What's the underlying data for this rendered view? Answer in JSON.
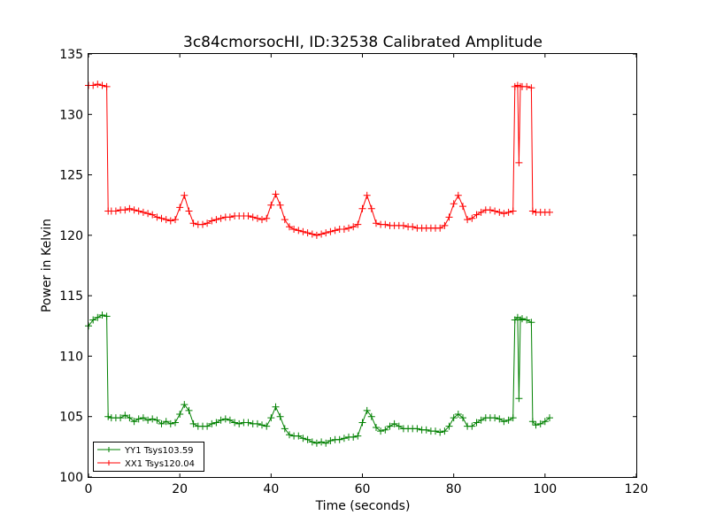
{
  "chart_data": {
    "type": "line",
    "title": "3c84cmorsocHI, ID:32538 Calibrated Amplitude",
    "xlabel": "Time (seconds)",
    "ylabel": "Power in Kelvin",
    "xlim": [
      0,
      120
    ],
    "ylim": [
      100,
      135
    ],
    "xticks": [
      0,
      20,
      40,
      60,
      80,
      100,
      120
    ],
    "yticks": [
      100,
      105,
      110,
      115,
      120,
      125,
      130,
      135
    ],
    "grid": false,
    "legend_position": "lower-left",
    "marker": "+",
    "series": [
      {
        "name": "YY1 Tsys103.59",
        "color": "#008000",
        "points": [
          [
            0,
            112.5
          ],
          [
            1,
            113.0
          ],
          [
            2,
            113.2
          ],
          [
            3,
            113.4
          ],
          [
            4,
            113.3
          ],
          [
            4.3,
            105.0
          ],
          [
            5,
            104.9
          ],
          [
            6,
            104.9
          ],
          [
            7,
            104.9
          ],
          [
            8,
            105.1
          ],
          [
            9,
            104.9
          ],
          [
            10,
            104.6
          ],
          [
            11,
            104.8
          ],
          [
            12,
            104.9
          ],
          [
            13,
            104.7
          ],
          [
            14,
            104.8
          ],
          [
            15,
            104.7
          ],
          [
            16,
            104.4
          ],
          [
            17,
            104.6
          ],
          [
            18,
            104.4
          ],
          [
            19,
            104.5
          ],
          [
            20,
            105.2
          ],
          [
            21,
            106.0
          ],
          [
            22,
            105.5
          ],
          [
            23,
            104.4
          ],
          [
            24,
            104.2
          ],
          [
            25,
            104.2
          ],
          [
            26,
            104.2
          ],
          [
            27,
            104.4
          ],
          [
            28,
            104.5
          ],
          [
            29,
            104.7
          ],
          [
            30,
            104.8
          ],
          [
            31,
            104.7
          ],
          [
            32,
            104.5
          ],
          [
            33,
            104.4
          ],
          [
            34,
            104.5
          ],
          [
            35,
            104.5
          ],
          [
            36,
            104.4
          ],
          [
            37,
            104.4
          ],
          [
            38,
            104.3
          ],
          [
            39,
            104.2
          ],
          [
            40,
            104.9
          ],
          [
            41,
            105.8
          ],
          [
            42,
            105.0
          ],
          [
            43,
            104.0
          ],
          [
            44,
            103.5
          ],
          [
            45,
            103.4
          ],
          [
            46,
            103.4
          ],
          [
            47,
            103.2
          ],
          [
            48,
            103.1
          ],
          [
            49,
            102.9
          ],
          [
            50,
            102.8
          ],
          [
            51,
            102.9
          ],
          [
            52,
            102.8
          ],
          [
            53,
            103.0
          ],
          [
            54,
            103.1
          ],
          [
            55,
            103.1
          ],
          [
            56,
            103.2
          ],
          [
            57,
            103.3
          ],
          [
            58,
            103.3
          ],
          [
            59,
            103.4
          ],
          [
            60,
            104.5
          ],
          [
            61,
            105.5
          ],
          [
            62,
            105.0
          ],
          [
            63,
            104.1
          ],
          [
            64,
            103.8
          ],
          [
            65,
            103.9
          ],
          [
            66,
            104.2
          ],
          [
            67,
            104.4
          ],
          [
            68,
            104.2
          ],
          [
            69,
            104.0
          ],
          [
            70,
            104.0
          ],
          [
            71,
            104.0
          ],
          [
            72,
            104.0
          ],
          [
            73,
            103.9
          ],
          [
            74,
            103.9
          ],
          [
            75,
            103.8
          ],
          [
            76,
            103.8
          ],
          [
            77,
            103.7
          ],
          [
            78,
            103.8
          ],
          [
            79,
            104.2
          ],
          [
            80,
            104.9
          ],
          [
            81,
            105.2
          ],
          [
            82,
            104.9
          ],
          [
            83,
            104.2
          ],
          [
            84,
            104.2
          ],
          [
            85,
            104.5
          ],
          [
            86,
            104.7
          ],
          [
            87,
            104.9
          ],
          [
            88,
            104.9
          ],
          [
            89,
            104.9
          ],
          [
            90,
            104.8
          ],
          [
            91,
            104.6
          ],
          [
            92,
            104.7
          ],
          [
            93,
            104.9
          ],
          [
            93.4,
            113.0
          ],
          [
            94,
            113.2
          ],
          [
            94.3,
            106.5
          ],
          [
            94.6,
            113.0
          ],
          [
            95,
            113.1
          ],
          [
            96,
            113.0
          ],
          [
            97,
            112.8
          ],
          [
            97.3,
            104.6
          ],
          [
            98,
            104.3
          ],
          [
            99,
            104.4
          ],
          [
            100,
            104.6
          ],
          [
            101,
            104.9
          ]
        ]
      },
      {
        "name": "XX1 Tsys120.04",
        "color": "#ff0000",
        "points": [
          [
            0,
            132.4
          ],
          [
            1,
            132.4
          ],
          [
            2,
            132.5
          ],
          [
            3,
            132.4
          ],
          [
            4,
            132.3
          ],
          [
            4.3,
            122.0
          ],
          [
            5,
            122.0
          ],
          [
            6,
            122.0
          ],
          [
            7,
            122.1
          ],
          [
            8,
            122.1
          ],
          [
            9,
            122.2
          ],
          [
            10,
            122.1
          ],
          [
            11,
            122.0
          ],
          [
            12,
            121.9
          ],
          [
            13,
            121.8
          ],
          [
            14,
            121.7
          ],
          [
            15,
            121.5
          ],
          [
            16,
            121.4
          ],
          [
            17,
            121.3
          ],
          [
            18,
            121.2
          ],
          [
            19,
            121.3
          ],
          [
            20,
            122.3
          ],
          [
            21,
            123.3
          ],
          [
            22,
            122.0
          ],
          [
            23,
            121.0
          ],
          [
            24,
            120.9
          ],
          [
            25,
            120.9
          ],
          [
            26,
            121.0
          ],
          [
            27,
            121.2
          ],
          [
            28,
            121.3
          ],
          [
            29,
            121.4
          ],
          [
            30,
            121.5
          ],
          [
            31,
            121.5
          ],
          [
            32,
            121.6
          ],
          [
            33,
            121.6
          ],
          [
            34,
            121.6
          ],
          [
            35,
            121.6
          ],
          [
            36,
            121.5
          ],
          [
            37,
            121.4
          ],
          [
            38,
            121.3
          ],
          [
            39,
            121.4
          ],
          [
            40,
            122.5
          ],
          [
            41,
            123.4
          ],
          [
            42,
            122.5
          ],
          [
            43,
            121.3
          ],
          [
            44,
            120.7
          ],
          [
            45,
            120.5
          ],
          [
            46,
            120.4
          ],
          [
            47,
            120.3
          ],
          [
            48,
            120.2
          ],
          [
            49,
            120.1
          ],
          [
            50,
            120.0
          ],
          [
            51,
            120.1
          ],
          [
            52,
            120.2
          ],
          [
            53,
            120.3
          ],
          [
            54,
            120.4
          ],
          [
            55,
            120.5
          ],
          [
            56,
            120.5
          ],
          [
            57,
            120.6
          ],
          [
            58,
            120.7
          ],
          [
            59,
            120.9
          ],
          [
            60,
            122.2
          ],
          [
            61,
            123.3
          ],
          [
            62,
            122.2
          ],
          [
            63,
            121.0
          ],
          [
            64,
            120.9
          ],
          [
            65,
            120.9
          ],
          [
            66,
            120.8
          ],
          [
            67,
            120.8
          ],
          [
            68,
            120.8
          ],
          [
            69,
            120.8
          ],
          [
            70,
            120.7
          ],
          [
            71,
            120.7
          ],
          [
            72,
            120.6
          ],
          [
            73,
            120.6
          ],
          [
            74,
            120.6
          ],
          [
            75,
            120.6
          ],
          [
            76,
            120.6
          ],
          [
            77,
            120.6
          ],
          [
            78,
            120.8
          ],
          [
            79,
            121.5
          ],
          [
            80,
            122.6
          ],
          [
            81,
            123.3
          ],
          [
            82,
            122.4
          ],
          [
            83,
            121.3
          ],
          [
            84,
            121.4
          ],
          [
            85,
            121.7
          ],
          [
            86,
            121.9
          ],
          [
            87,
            122.1
          ],
          [
            88,
            122.1
          ],
          [
            89,
            122.0
          ],
          [
            90,
            121.9
          ],
          [
            91,
            121.8
          ],
          [
            92,
            121.9
          ],
          [
            93,
            122.0
          ],
          [
            93.4,
            132.3
          ],
          [
            94,
            132.4
          ],
          [
            94.3,
            126.0
          ],
          [
            94.6,
            132.3
          ],
          [
            95,
            132.3
          ],
          [
            96,
            132.3
          ],
          [
            97,
            132.2
          ],
          [
            97.3,
            122.0
          ],
          [
            98,
            121.9
          ],
          [
            99,
            121.9
          ],
          [
            100,
            121.9
          ],
          [
            101,
            121.9
          ]
        ]
      }
    ]
  }
}
